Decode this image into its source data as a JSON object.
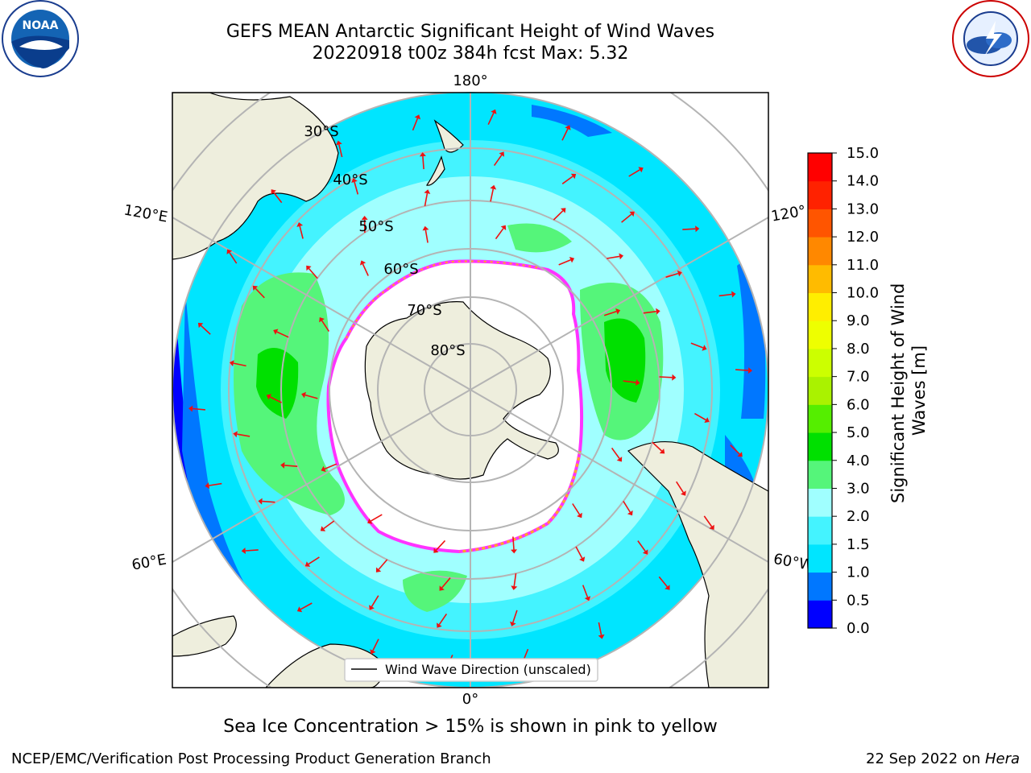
{
  "header": {
    "title_line1": "GEFS MEAN Antarctic Significant Height of Wind Waves",
    "title_line2": "20220918 t00z 384h fcst   Max: 5.32",
    "noaa_logo_text": "NOAA",
    "nws_logo_text": "NATIONAL WEATHER SERVICE"
  },
  "map": {
    "lon_labels": {
      "top": "180°",
      "bottom": "0°",
      "upper_left": "120°E",
      "lower_left": "60°E",
      "upper_right": "120°",
      "lower_right": "60°W"
    },
    "lat_labels": [
      "30°S",
      "40°S",
      "50°S",
      "60°S",
      "70°S",
      "80°S"
    ],
    "legend_label": "Wind Wave Direction (unscaled)",
    "arrow_color": "#ee1111",
    "land_color": "#eeeedd",
    "ice_edge_colors": [
      "#ff33ff",
      "#ffaa22"
    ]
  },
  "colorbar": {
    "label": "Significant Height of Wind Waves [m]",
    "ticks": [
      "0.0",
      "0.5",
      "1.0",
      "1.5",
      "2.0",
      "3.0",
      "4.0",
      "5.0",
      "6.0",
      "7.0",
      "8.0",
      "9.0",
      "10.0",
      "11.0",
      "12.0",
      "13.0",
      "14.0",
      "15.0"
    ],
    "colors": [
      "#0000ff",
      "#0077ff",
      "#00e5ff",
      "#44f3ff",
      "#a0ffff",
      "#55f57a",
      "#00e000",
      "#55ee00",
      "#aaf200",
      "#ccff00",
      "#eeff00",
      "#ffee00",
      "#ffbb00",
      "#ff8800",
      "#ff5500",
      "#ff2200",
      "#ff0000"
    ]
  },
  "notes": {
    "sea_ice": "Sea Ice Concentration > 15% is shown in pink to yellow",
    "producer": "NCEP/EMC/Verification Post Processing Product Generation Branch",
    "date_prefix": "22 Sep 2022 on ",
    "machine": "Hera"
  }
}
